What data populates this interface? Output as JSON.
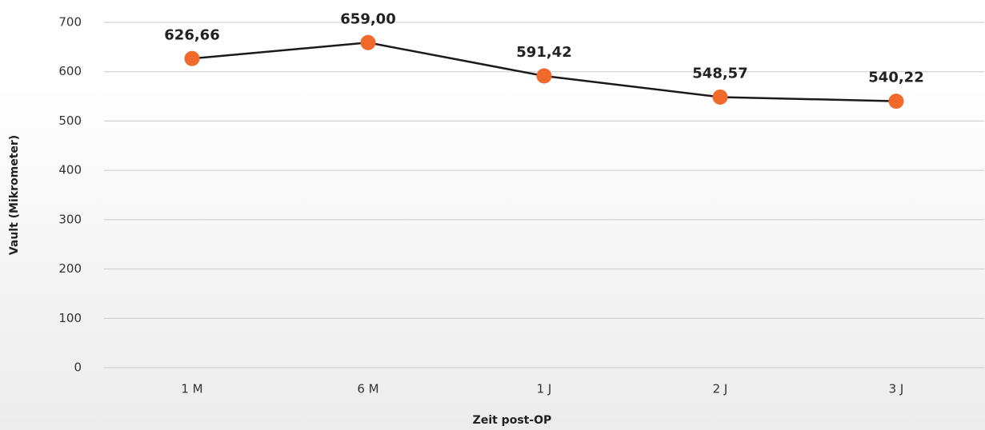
{
  "chart_data": {
    "type": "line",
    "categories": [
      "1 M",
      "6 M",
      "1 J",
      "2 J",
      "3 J"
    ],
    "series": [
      {
        "name": "Vault",
        "color": "#f26a2b",
        "values": [
          626.66,
          659.0,
          591.42,
          548.57,
          540.22
        ],
        "value_labels": [
          "626,66",
          "659,00",
          "591,42",
          "548,57",
          "540,22"
        ]
      }
    ],
    "line_color": "#1a1a1a",
    "xlabel": "Zeit post-OP",
    "ylabel": "Vault (Mikrometer)",
    "ylim": [
      0,
      700
    ],
    "yticks": [
      0,
      100,
      200,
      300,
      400,
      500,
      600,
      700
    ],
    "grid": true
  }
}
